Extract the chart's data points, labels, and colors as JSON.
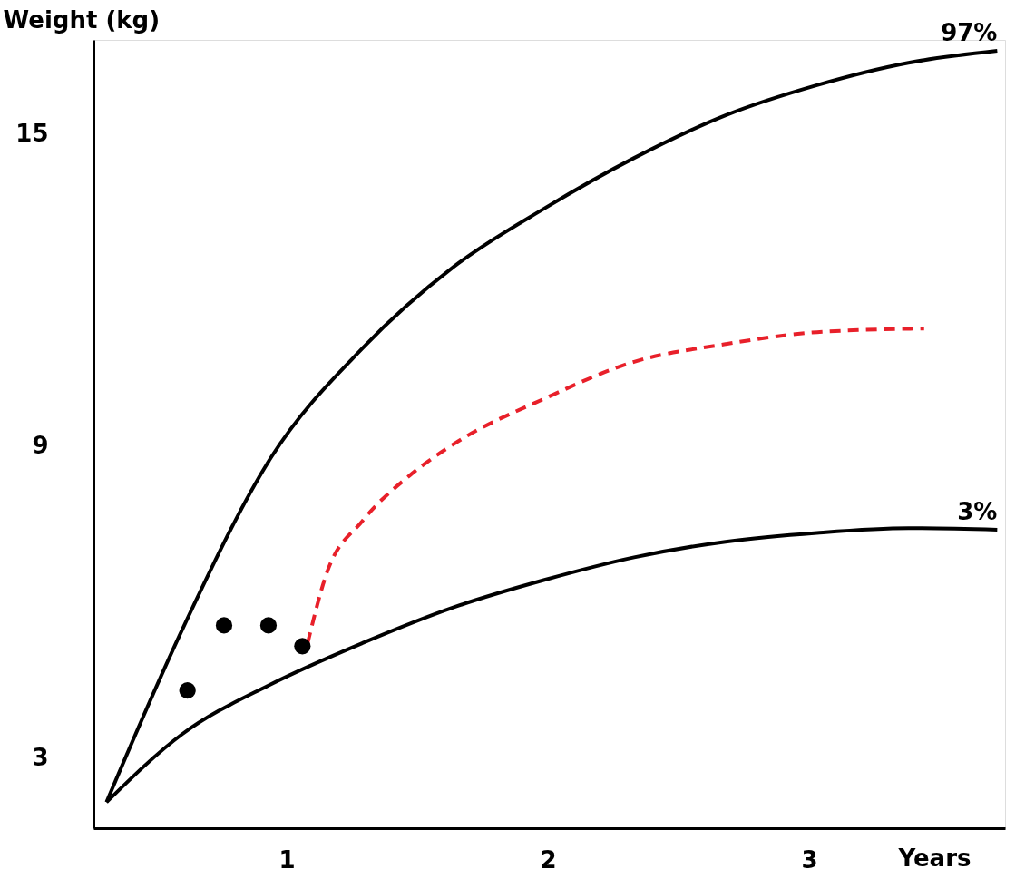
{
  "chart_data": {
    "type": "line",
    "xlabel": "Years",
    "ylabel": "Weight (kg)",
    "xlim": [
      0.26,
      3.75
    ],
    "ylim": [
      1.64,
      16.8
    ],
    "xticks": [
      1,
      2,
      3
    ],
    "yticks": [
      3,
      9,
      15
    ],
    "grid": false,
    "series": [
      {
        "name": "97%",
        "color": "#000000",
        "marker": "none",
        "x": [
          0.31,
          0.6,
          0.94,
          1.29,
          1.64,
          1.99,
          2.33,
          2.68,
          3.03,
          3.38,
          3.72
        ],
        "values": [
          2.14,
          5.46,
          8.77,
          10.87,
          12.44,
          13.57,
          14.53,
          15.35,
          15.93,
          16.36,
          16.59
        ]
      },
      {
        "name": "3%",
        "color": "#000000",
        "marker": "none",
        "x": [
          0.31,
          0.6,
          0.94,
          1.29,
          1.64,
          1.99,
          2.33,
          2.68,
          3.03,
          3.38,
          3.72
        ],
        "values": [
          2.14,
          3.45,
          4.41,
          5.2,
          5.89,
          6.42,
          6.85,
          7.15,
          7.32,
          7.41,
          7.38
        ]
      },
      {
        "color": "#e8202a",
        "line_style": "dashed",
        "marker": "none",
        "x": [
          1.08,
          1.15,
          1.29,
          1.47,
          1.64,
          1.99,
          2.33,
          2.68,
          3.03,
          3.44
        ],
        "values": [
          5.2,
          6.5,
          7.55,
          8.42,
          9.03,
          9.91,
          10.61,
          10.95,
          11.18,
          11.25
        ]
      },
      {
        "type": "scatter",
        "marker": "circle",
        "color": "#000000",
        "x": [
          0.62,
          0.76,
          0.93,
          1.06
        ],
        "values": [
          4.29,
          5.54,
          5.54,
          5.14
        ]
      }
    ]
  }
}
